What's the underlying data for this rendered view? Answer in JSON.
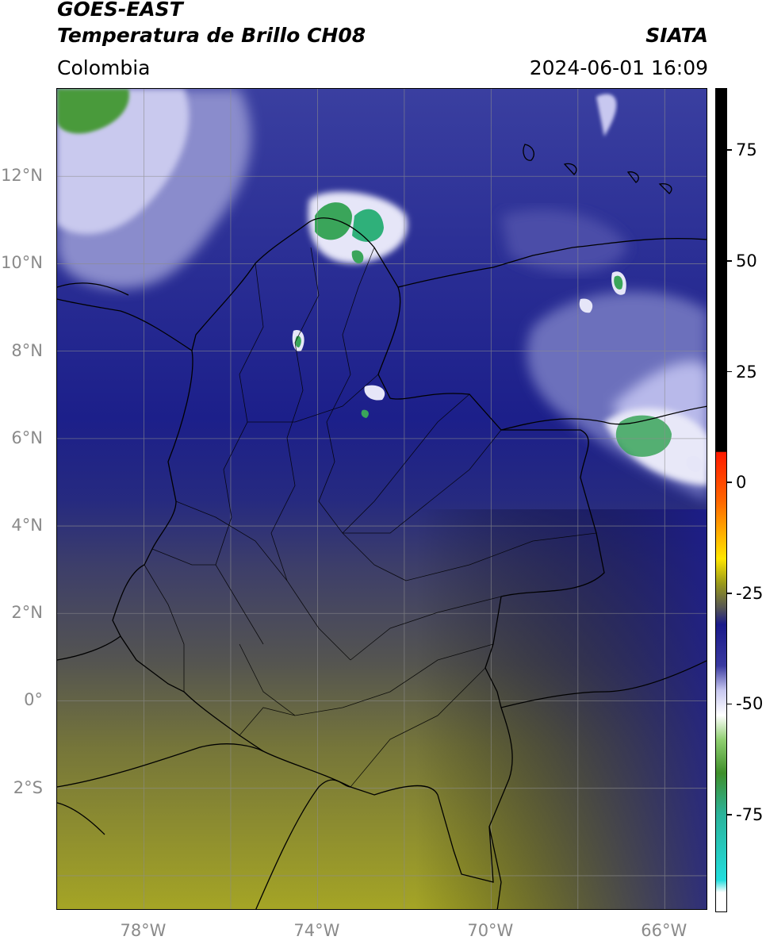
{
  "header": {
    "satellite": "GOES-EAST",
    "product": "Temperatura de Brillo CH08",
    "source": "SIATA",
    "region": "Colombia",
    "datetime": "2024-06-01 16:09"
  },
  "map": {
    "lon_range": [
      -80,
      -65
    ],
    "lat_range": [
      -4.8,
      14
    ],
    "lat_labels": [
      "12°N",
      "10°N",
      "8°N",
      "6°N",
      "4°N",
      "2°N",
      "0°",
      "2°S"
    ],
    "lon_labels": [
      "78°W",
      "74°W",
      "70°W",
      "66°W"
    ]
  },
  "colorbar": {
    "range": [
      -97,
      89
    ],
    "ticks": [
      "75",
      "50",
      "25",
      "0",
      "-25",
      "-50",
      "-75"
    ],
    "colors": {
      "black": "#000000",
      "red": "#ff1a00",
      "orange": "#ff9900",
      "yellow": "#ffe600",
      "olive": "#9a9a1a",
      "gray": "#555555",
      "navy": "#1a1a8a",
      "lavender": "#c8c8f0",
      "white": "#ffffff",
      "green": "#3f8f2a",
      "teal": "#2bb39a",
      "cyan": "#22dddd"
    }
  },
  "colors": {
    "map_base": "#1e2288",
    "map_olive": "#8a8a2a",
    "cloud_green": "#3aa55a"
  }
}
